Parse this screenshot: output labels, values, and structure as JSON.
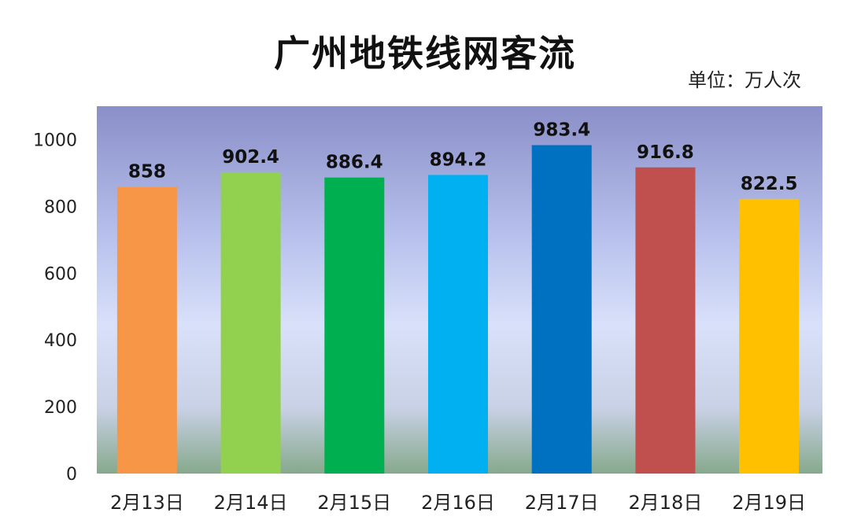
{
  "title": "广州地铁线网客流",
  "unit": "单位：万人次",
  "chart_data": {
    "type": "bar",
    "title": "广州地铁线网客流",
    "unit_label": "单位：万人次",
    "categories": [
      "2月13日",
      "2月14日",
      "2月15日",
      "2月16日",
      "2月17日",
      "2月18日",
      "2月19日"
    ],
    "values": [
      858,
      902.4,
      886.4,
      894.2,
      983.4,
      916.8,
      822.5
    ],
    "value_labels": [
      "858",
      "902.4",
      "886.4",
      "894.2",
      "983.4",
      "916.8",
      "822.5"
    ],
    "colors": [
      "#F79646",
      "#92D050",
      "#00B050",
      "#00B0F0",
      "#0070C0",
      "#C0504D",
      "#FFC000"
    ],
    "yticks": [
      "0",
      "200",
      "400",
      "600",
      "800",
      "1000"
    ],
    "ylim": [
      0,
      1100
    ],
    "legend": false,
    "grid": false
  }
}
